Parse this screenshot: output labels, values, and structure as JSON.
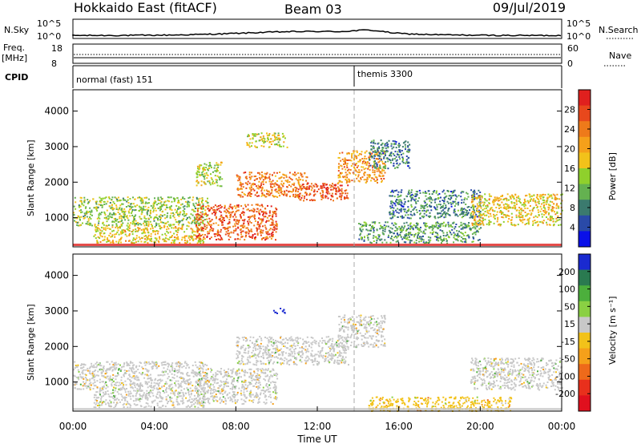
{
  "header": {
    "site": "Hokkaido East (fitACF)",
    "beam": "Beam 03",
    "date": "09/Jul/2019"
  },
  "nsky_panel": {
    "left_label": "N.Sky",
    "right_label": "N.Search",
    "ticks": [
      "10^5",
      "10^0"
    ]
  },
  "freq_panel": {
    "left_label_line1": "Freq.",
    "left_label_line2": "[MHz]",
    "left_ticks": [
      "18",
      "8"
    ],
    "right_label": "Nave",
    "right_ticks": [
      "60",
      "0"
    ]
  },
  "cpid_panel": {
    "label": "CPID",
    "modes": [
      {
        "name": "normal (fast) 151",
        "start_hour": 0
      },
      {
        "name": "themis 3300",
        "start_hour": 14
      }
    ]
  },
  "x_axis": {
    "label": "Time UT",
    "ticks": [
      "00:00",
      "04:00",
      "08:00",
      "12:00",
      "16:00",
      "20:00",
      "00:00"
    ]
  },
  "chart_data": [
    {
      "type": "heatmap",
      "name": "power",
      "ylabel": "Slant Range [km]",
      "yticks": [
        "1000",
        "2000",
        "3000",
        "4000"
      ],
      "ylim": [
        180,
        4600
      ],
      "xlim": [
        0,
        24
      ],
      "colorbar_label": "Power [dB]",
      "colorbar_ticks": [
        "4",
        "8",
        "12",
        "16",
        "20",
        "24",
        "28"
      ],
      "colorbar_colors": [
        "#0a10e8",
        "#2a4aa8",
        "#3b7a6e",
        "#64b150",
        "#8fd02c",
        "#f2c21a",
        "#f5a01a",
        "#ee7a1a",
        "#e8481c",
        "#e0201e"
      ],
      "regions": [
        {
          "x": [
            0.0,
            6.6
          ],
          "y": [
            800,
            1600
          ],
          "value": 14
        },
        {
          "x": [
            1.0,
            6.5
          ],
          "y": [
            300,
            800
          ],
          "value": 18
        },
        {
          "x": [
            6.0,
            7.3
          ],
          "y": [
            1900,
            2600
          ],
          "value": 15
        },
        {
          "x": [
            6.0,
            10.0
          ],
          "y": [
            400,
            1400
          ],
          "value": 26
        },
        {
          "x": [
            8.0,
            11.5
          ],
          "y": [
            1600,
            2300
          ],
          "value": 24
        },
        {
          "x": [
            11.0,
            13.5
          ],
          "y": [
            1500,
            2000
          ],
          "value": 27
        },
        {
          "x": [
            13.0,
            15.3
          ],
          "y": [
            2000,
            2900
          ],
          "value": 22
        },
        {
          "x": [
            14.0,
            20.0
          ],
          "y": [
            300,
            900
          ],
          "value": 10
        },
        {
          "x": [
            15.5,
            20.0
          ],
          "y": [
            1000,
            1800
          ],
          "value": 8
        },
        {
          "x": [
            19.5,
            24.0
          ],
          "y": [
            800,
            1700
          ],
          "value": 18
        },
        {
          "x": [
            8.5,
            10.5
          ],
          "y": [
            3000,
            3400
          ],
          "value": 16
        },
        {
          "x": [
            14.5,
            16.5
          ],
          "y": [
            2400,
            3200
          ],
          "value": 8
        }
      ]
    },
    {
      "type": "heatmap",
      "name": "velocity",
      "ylabel": "Slant Range [km]",
      "yticks": [
        "1000",
        "2000",
        "3000",
        "4000"
      ],
      "ylim": [
        180,
        4600
      ],
      "xlim": [
        0,
        24
      ],
      "colorbar_label": "Velocity [m s⁻¹]",
      "colorbar_ticks": [
        "200",
        "100",
        "50",
        "15",
        "-15",
        "-50",
        "-100",
        "-200"
      ],
      "colorbar_colors": [
        "#1a2ad0",
        "#2a7a50",
        "#4caf3c",
        "#8ad043",
        "#c8c8c8",
        "#f2c21a",
        "#f5a01a",
        "#ee6a1a",
        "#e8301c",
        "#e0101e"
      ],
      "regions": [
        {
          "x": [
            0.0,
            6.6
          ],
          "y": [
            800,
            1600
          ],
          "value": 0
        },
        {
          "x": [
            1.0,
            6.5
          ],
          "y": [
            300,
            800
          ],
          "value": 0
        },
        {
          "x": [
            6.0,
            10.0
          ],
          "y": [
            400,
            1400
          ],
          "value": 0
        },
        {
          "x": [
            8.0,
            13.5
          ],
          "y": [
            1500,
            2300
          ],
          "value": 0
        },
        {
          "x": [
            13.0,
            15.3
          ],
          "y": [
            2000,
            2900
          ],
          "value": 0
        },
        {
          "x": [
            9.8,
            10.4
          ],
          "y": [
            2950,
            3100
          ],
          "value": 200
        },
        {
          "x": [
            14.5,
            21.5
          ],
          "y": [
            200,
            600
          ],
          "value": -40
        },
        {
          "x": [
            19.5,
            24.0
          ],
          "y": [
            800,
            1700
          ],
          "value": 0
        }
      ]
    }
  ]
}
